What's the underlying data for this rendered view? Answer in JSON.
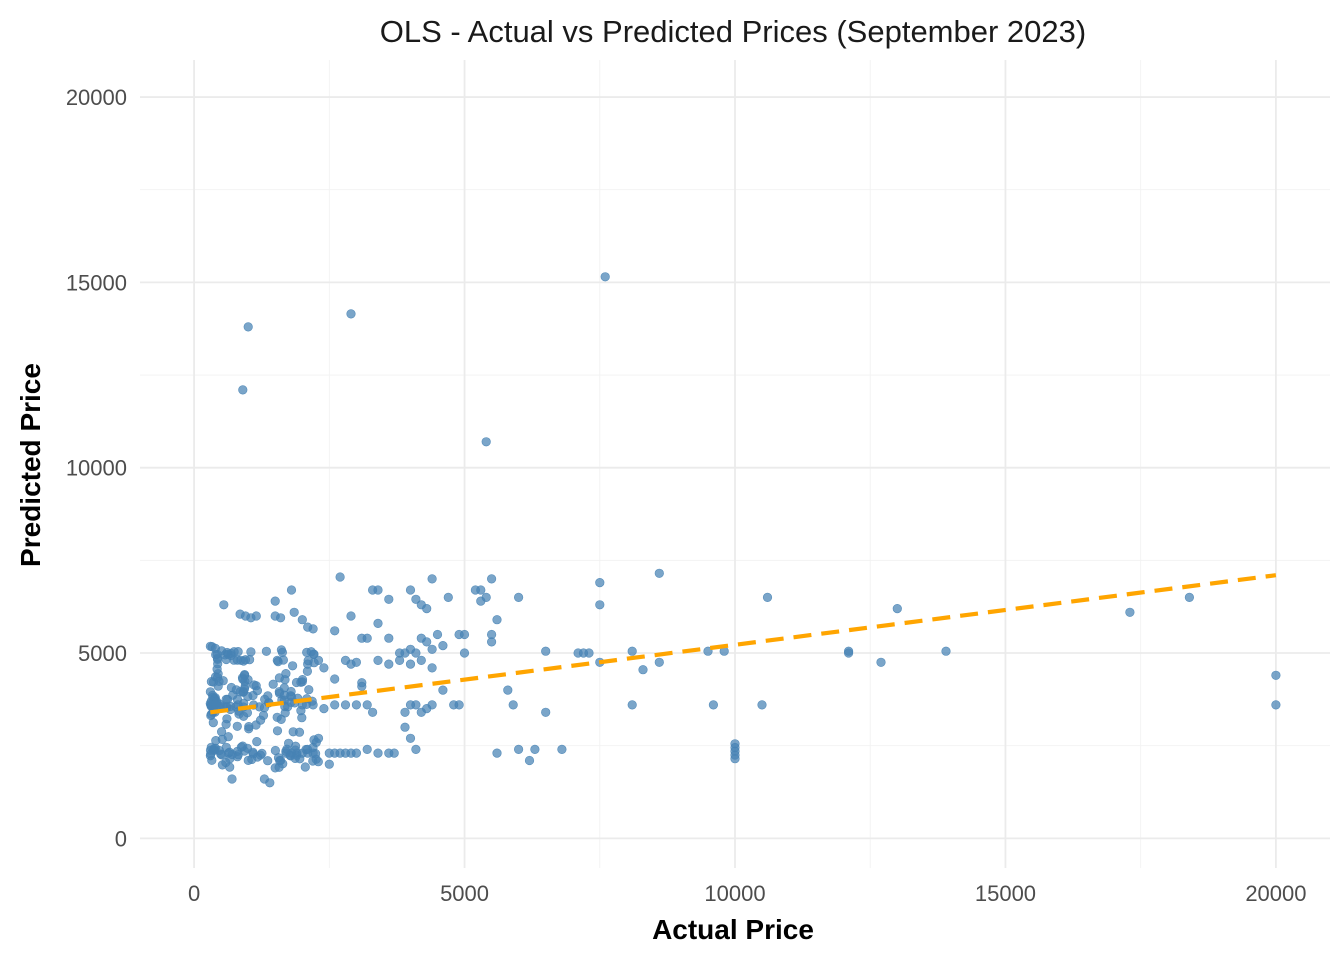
{
  "chart_data": {
    "type": "scatter",
    "title": "OLS - Actual vs Predicted Prices (September 2023)",
    "xlabel": "Actual Price",
    "ylabel": "Predicted Price",
    "xlim": [
      -1000,
      21000
    ],
    "ylim": [
      -800,
      21000
    ],
    "x_ticks": [
      0,
      5000,
      10000,
      15000,
      20000
    ],
    "y_ticks": [
      0,
      5000,
      10000,
      15000,
      20000
    ],
    "grid": true,
    "legend": "none",
    "colors": {
      "points": "#4682b4",
      "fit_line": "#ffa500",
      "grid": "#ebebeb"
    },
    "series": [
      {
        "kind": "points",
        "points": [
          [
            900,
            12100
          ],
          [
            1000,
            13800
          ],
          [
            2900,
            14150
          ],
          [
            7600,
            15150
          ],
          [
            5400,
            10700
          ],
          [
            2700,
            7050
          ],
          [
            3300,
            6700
          ],
          [
            3400,
            6700
          ],
          [
            3600,
            6450
          ],
          [
            4000,
            6700
          ],
          [
            4100,
            6450
          ],
          [
            4200,
            6300
          ],
          [
            4400,
            7000
          ],
          [
            4300,
            6200
          ],
          [
            4700,
            6500
          ],
          [
            5200,
            6700
          ],
          [
            5300,
            6700
          ],
          [
            5500,
            7000
          ],
          [
            5600,
            5900
          ],
          [
            5300,
            6400
          ],
          [
            5400,
            6500
          ],
          [
            5500,
            5500
          ],
          [
            6000,
            6500
          ],
          [
            7500,
            6900
          ],
          [
            7500,
            6300
          ],
          [
            8600,
            7150
          ],
          [
            10600,
            6500
          ],
          [
            13000,
            6200
          ],
          [
            17300,
            6100
          ],
          [
            18400,
            6500
          ],
          [
            20000,
            4400
          ],
          [
            20000,
            3600
          ],
          [
            6500,
            5050
          ],
          [
            7100,
            5000
          ],
          [
            7200,
            5000
          ],
          [
            7300,
            5000
          ],
          [
            7500,
            4750
          ],
          [
            8100,
            5050
          ],
          [
            8300,
            4550
          ],
          [
            8600,
            4750
          ],
          [
            9500,
            5050
          ],
          [
            9800,
            5050
          ],
          [
            12100,
            5050
          ],
          [
            12100,
            5000
          ],
          [
            12700,
            4750
          ],
          [
            13900,
            5050
          ],
          [
            5800,
            4000
          ],
          [
            5900,
            3600
          ],
          [
            8100,
            3600
          ],
          [
            9600,
            3600
          ],
          [
            10500,
            3600
          ],
          [
            10000,
            2550
          ],
          [
            10000,
            2450
          ],
          [
            10000,
            2350
          ],
          [
            10000,
            2250
          ],
          [
            10000,
            2150
          ],
          [
            5600,
            2300
          ],
          [
            6000,
            2400
          ],
          [
            6200,
            2100
          ],
          [
            6300,
            2400
          ],
          [
            6800,
            2400
          ],
          [
            550,
            6300
          ],
          [
            850,
            6050
          ],
          [
            950,
            6000
          ],
          [
            1050,
            5950
          ],
          [
            1150,
            6000
          ],
          [
            1500,
            6400
          ],
          [
            1500,
            6000
          ],
          [
            1600,
            5950
          ],
          [
            1800,
            6700
          ],
          [
            1850,
            6100
          ],
          [
            2000,
            5900
          ],
          [
            2100,
            5700
          ],
          [
            2200,
            5650
          ],
          [
            2600,
            5600
          ],
          [
            2900,
            6000
          ],
          [
            3100,
            5400
          ],
          [
            3200,
            5400
          ],
          [
            3400,
            5800
          ],
          [
            3600,
            5400
          ],
          [
            3800,
            5000
          ],
          [
            3900,
            5000
          ],
          [
            4000,
            5100
          ],
          [
            4100,
            5000
          ],
          [
            4200,
            5400
          ],
          [
            4300,
            5300
          ],
          [
            4400,
            5100
          ],
          [
            4500,
            5500
          ],
          [
            4600,
            5200
          ],
          [
            4900,
            5500
          ],
          [
            5000,
            5500
          ],
          [
            5000,
            5000
          ],
          [
            5500,
            5300
          ],
          [
            3400,
            4800
          ],
          [
            3600,
            4700
          ],
          [
            3800,
            4800
          ],
          [
            4000,
            4700
          ],
          [
            4200,
            4800
          ],
          [
            4400,
            4600
          ],
          [
            4600,
            4000
          ],
          [
            4800,
            3600
          ],
          [
            4900,
            3600
          ],
          [
            4400,
            3600
          ],
          [
            3900,
            3400
          ],
          [
            4000,
            3600
          ],
          [
            4100,
            3600
          ],
          [
            4200,
            3400
          ],
          [
            4300,
            3500
          ],
          [
            3200,
            3600
          ],
          [
            3300,
            3400
          ],
          [
            3000,
            3600
          ],
          [
            2800,
            3600
          ],
          [
            2600,
            3600
          ],
          [
            2400,
            3500
          ],
          [
            2200,
            3600
          ],
          [
            2000,
            3600
          ],
          [
            3100,
            4200
          ],
          [
            3100,
            4100
          ],
          [
            2800,
            4800
          ],
          [
            2900,
            4700
          ],
          [
            3000,
            4750
          ],
          [
            2600,
            4300
          ],
          [
            2400,
            4600
          ],
          [
            2300,
            4800
          ],
          [
            2100,
            4700
          ],
          [
            3900,
            3000
          ],
          [
            4000,
            2700
          ],
          [
            4100,
            2400
          ],
          [
            3400,
            2300
          ],
          [
            3200,
            2400
          ],
          [
            3000,
            2300
          ],
          [
            2900,
            2300
          ],
          [
            2800,
            2300
          ],
          [
            2700,
            2300
          ],
          [
            2600,
            2300
          ],
          [
            2500,
            2300
          ],
          [
            2300,
            2700
          ],
          [
            2200,
            2300
          ],
          [
            2100,
            2300
          ],
          [
            2500,
            2000
          ],
          [
            1400,
            1500
          ],
          [
            1300,
            1600
          ],
          [
            700,
            1600
          ],
          [
            1500,
            1900
          ],
          [
            1600,
            2100
          ],
          [
            1700,
            2300
          ],
          [
            1800,
            2300
          ],
          [
            1900,
            2300
          ],
          [
            2000,
            2300
          ],
          [
            3600,
            2300
          ],
          [
            3700,
            2300
          ],
          [
            6500,
            3400
          ]
        ]
      },
      {
        "kind": "cluster",
        "seed": 7,
        "count": 220,
        "x_range": [
          300,
          2300
        ],
        "y_range": [
          1900,
          5200
        ]
      }
    ],
    "fit_line": {
      "style": "dashed",
      "x": [
        300,
        20000
      ],
      "y": [
        3400,
        7100
      ]
    }
  }
}
